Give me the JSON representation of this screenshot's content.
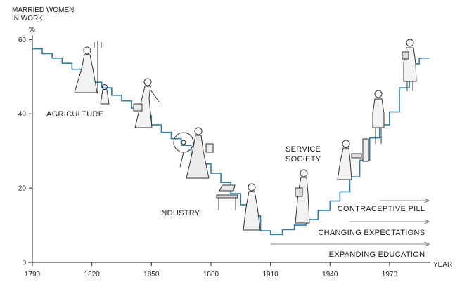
{
  "chart_data": {
    "type": "line",
    "title": "",
    "ylabel": [
      "MARRIED WOMEN",
      "IN WORK"
    ],
    "yunit": "%",
    "xlabel": "YEAR",
    "x_ticks": [
      "1790",
      "1820",
      "1850",
      "1880",
      "1910",
      "1940",
      "1970"
    ],
    "y_ticks": [
      "0",
      "20",
      "40",
      "60"
    ],
    "xlim": [
      1790,
      1992
    ],
    "ylim": [
      0,
      68
    ],
    "line_color": "#2f7ea8",
    "series": [
      {
        "points": [
          [
            1790,
            57.5
          ],
          [
            1795,
            57.5
          ],
          [
            1795,
            56.2
          ],
          [
            1800,
            56.2
          ],
          [
            1800,
            55
          ],
          [
            1805,
            55
          ],
          [
            1805,
            53.6
          ],
          [
            1810,
            53.6
          ],
          [
            1810,
            52
          ],
          [
            1815,
            52
          ],
          [
            1815,
            51
          ],
          [
            1820,
            51
          ],
          [
            1820,
            48.5
          ],
          [
            1825,
            48.5
          ],
          [
            1825,
            47
          ],
          [
            1830,
            47
          ],
          [
            1830,
            45
          ],
          [
            1835,
            45
          ],
          [
            1835,
            43.5
          ],
          [
            1840,
            43.5
          ],
          [
            1840,
            41.5
          ],
          [
            1845,
            41.5
          ],
          [
            1845,
            39.5
          ],
          [
            1850,
            39.5
          ],
          [
            1850,
            37
          ],
          [
            1855,
            37
          ],
          [
            1855,
            35
          ],
          [
            1860,
            35
          ],
          [
            1860,
            33.3
          ],
          [
            1865,
            33.3
          ],
          [
            1865,
            31.5
          ],
          [
            1870,
            31.5
          ],
          [
            1870,
            29
          ],
          [
            1875,
            29
          ],
          [
            1875,
            26.5
          ],
          [
            1880,
            26.5
          ],
          [
            1880,
            24
          ],
          [
            1885,
            24
          ],
          [
            1885,
            21.5
          ],
          [
            1890,
            21.5
          ],
          [
            1890,
            18.5
          ],
          [
            1895,
            18.5
          ],
          [
            1895,
            15.5
          ],
          [
            1900,
            15.5
          ],
          [
            1900,
            12.5
          ],
          [
            1905,
            12.5
          ],
          [
            1905,
            8.5
          ],
          [
            1910,
            8.5
          ],
          [
            1910,
            7.5
          ],
          [
            1916,
            7.5
          ],
          [
            1916,
            8.8
          ],
          [
            1922,
            8.8
          ],
          [
            1922,
            10
          ],
          [
            1928,
            10
          ],
          [
            1928,
            11.5
          ],
          [
            1934,
            11.5
          ],
          [
            1934,
            14
          ],
          [
            1940,
            14
          ],
          [
            1940,
            16.5
          ],
          [
            1945,
            16.5
          ],
          [
            1945,
            19
          ],
          [
            1950,
            19
          ],
          [
            1950,
            23
          ],
          [
            1955,
            23
          ],
          [
            1955,
            27.5
          ],
          [
            1960,
            27.5
          ],
          [
            1960,
            33.5
          ],
          [
            1965,
            33.5
          ],
          [
            1965,
            37
          ],
          [
            1970,
            37
          ],
          [
            1970,
            40.5
          ],
          [
            1975,
            40.5
          ],
          [
            1975,
            47
          ],
          [
            1980,
            47
          ],
          [
            1980,
            53.5
          ],
          [
            1985,
            53.5
          ],
          [
            1985,
            55
          ],
          [
            1990,
            55
          ]
        ]
      }
    ],
    "annotations": {
      "agriculture": "AGRICULTURE",
      "industry": "INDUSTRY",
      "service": [
        "SERVICE",
        "SOCIETY"
      ]
    },
    "trends": [
      {
        "label": "CONTRACEPTIVE PILL",
        "x_start": 1965,
        "x_end": 1990
      },
      {
        "label": "CHANGING EXPECTATIONS",
        "x_start": 1950,
        "x_end": 1990
      },
      {
        "label": "EXPANDING EDUCATION",
        "x_start": 1910,
        "x_end": 1990
      }
    ],
    "grid": false,
    "legend": "none"
  },
  "figures": {
    "description_icons": [
      "farm-woman-with-pitchfork-and-child",
      "woman-with-basket",
      "woman-at-spinning-wheel",
      "woman-at-sewing-machine",
      "woman-with-folder",
      "woman-at-office-machine",
      "woman-in-suit",
      "woman-with-document"
    ]
  }
}
